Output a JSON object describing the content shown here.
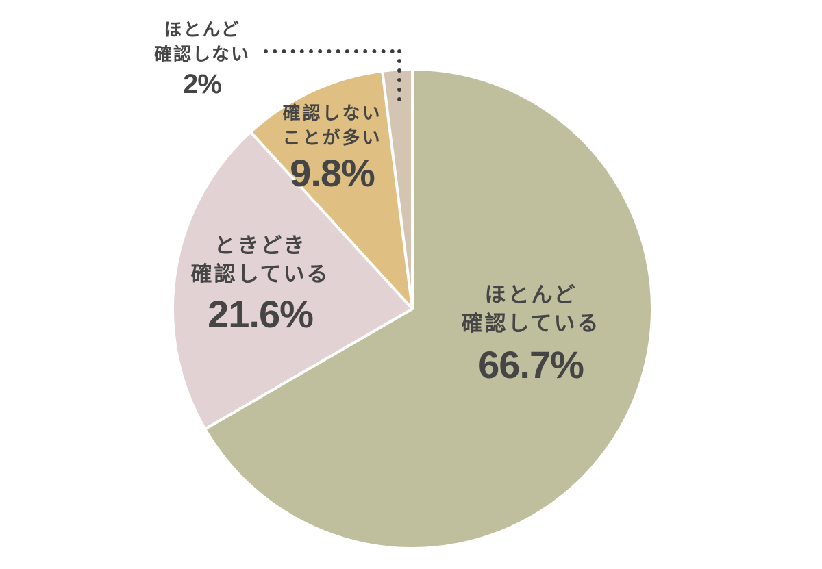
{
  "chart_data": {
    "type": "pie",
    "title": "",
    "start_angle": "12 o'clock, clockwise",
    "categories": [
      "ほとんど確認している",
      "ときどき確認している",
      "確認しないことが多い",
      "ほとんど確認しない"
    ],
    "values": [
      66.7,
      21.6,
      9.8,
      2
    ],
    "unit": "%",
    "colors": [
      "#bfbf9e",
      "#e2d2d3",
      "#dfc082",
      "#d4c4b2"
    ],
    "legend": "none (direct labels)"
  },
  "labels": [
    {
      "line1": "ほとんど",
      "line2": "確認している",
      "value": "66.7%"
    },
    {
      "line1": "ときどき",
      "line2": "確認している",
      "value": "21.6%"
    },
    {
      "line1": "確認しない",
      "line2": "ことが多い",
      "value": "9.8%"
    },
    {
      "line1": "ほとんど",
      "line2": "確認しない",
      "value": "2%"
    }
  ]
}
